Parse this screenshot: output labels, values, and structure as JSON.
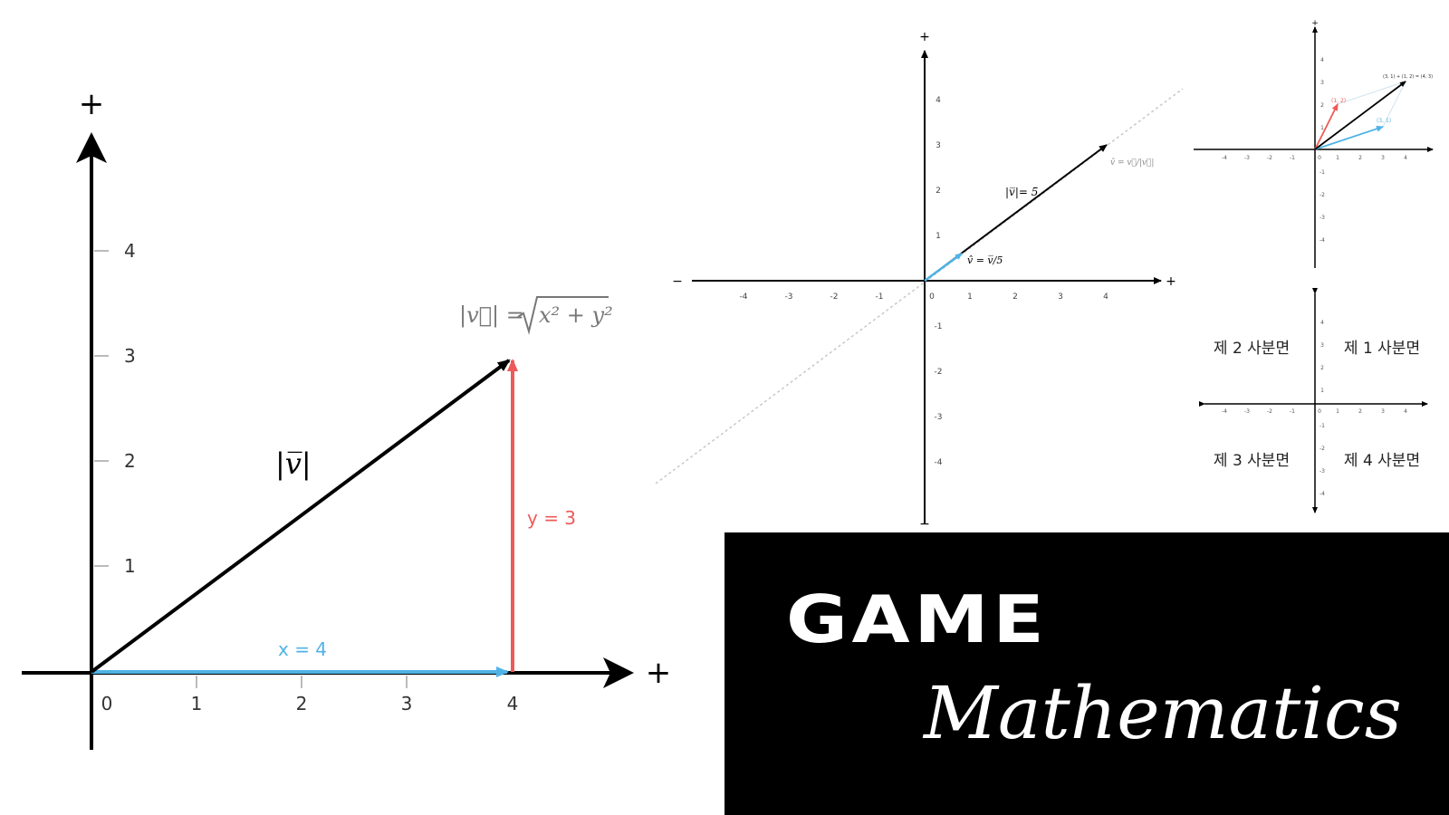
{
  "colors": {
    "axis": "#000000",
    "x_component": "#4fb3e6",
    "y_component": "#ee5a5a",
    "formula": "#777777",
    "guide": "#c8c8c8"
  },
  "panel_main": {
    "plus_y": "+",
    "plus_x": "+",
    "y_ticks": [
      "1",
      "2",
      "3",
      "4"
    ],
    "x_ticks": [
      "0",
      "1",
      "2",
      "3",
      "4"
    ],
    "formula_lhs": "|v⃗| =",
    "formula_rad": "x² + y²",
    "magnitude_label": "|v̅|",
    "x_label": "x = 4",
    "y_label": "y = 3"
  },
  "panel_unit": {
    "plus_top": "+",
    "minus_bottom": "−",
    "minus_left": "−",
    "plus_right": "+",
    "x_ticks": [
      "-4",
      "-3",
      "-2",
      "-1",
      "0",
      "1",
      "2",
      "3",
      "4"
    ],
    "y_ticks_pos": [
      "1",
      "2",
      "3",
      "4"
    ],
    "y_ticks_neg": [
      "-1",
      "-2",
      "-3",
      "-4"
    ],
    "magnitude": "|v̅|= 5",
    "unit_eq": "v̂ = v̅/5",
    "normalize_eq": "v̂ = v⃗/|v⃗|"
  },
  "panel_add": {
    "plus": "+",
    "x_ticks": [
      "-4",
      "-3",
      "-2",
      "-1",
      "0",
      "1",
      "2",
      "3",
      "4"
    ],
    "y_ticks": [
      "4",
      "3",
      "2",
      "1",
      "-1",
      "-2",
      "-3",
      "-4"
    ],
    "label_red": "(1, 2)",
    "label_blue": "(3, 1)",
    "label_sum": "(3, 1) + (1, 2) = (4, 3)"
  },
  "panel_quadrants": {
    "q1": "제 1 사분면",
    "q2": "제 2 사분면",
    "q3": "제 3 사분면",
    "q4": "제 4 사분면",
    "x_ticks": [
      "-4",
      "-3",
      "-2",
      "-1",
      "0",
      "1",
      "2",
      "3",
      "4"
    ],
    "y_ticks": [
      "4",
      "3",
      "2",
      "1",
      "-1",
      "-2",
      "-3",
      "-4"
    ]
  },
  "title": {
    "game": "GAME",
    "subtitle": "Mathematics"
  }
}
